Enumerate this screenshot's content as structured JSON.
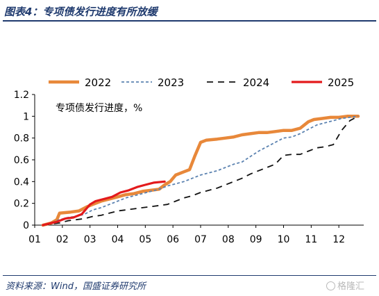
{
  "header": {
    "title": "图表4：专项债发行进度有所放缓"
  },
  "source": "资料来源：Wind，国盛证券研究所",
  "watermark": "格隆汇",
  "chart_data": {
    "type": "line",
    "annotation": "专项债发行进度，%",
    "x_ticks": [
      "01",
      "02",
      "03",
      "04",
      "05",
      "06",
      "07",
      "08",
      "09",
      "10",
      "11",
      "12"
    ],
    "y_ticks": [
      "0",
      "0.2",
      "0.4",
      "0.6",
      "0.8",
      "1",
      "1.2"
    ],
    "xlim": [
      1,
      12.9
    ],
    "ylim": [
      0,
      1.2
    ],
    "grid": false,
    "legend_position": "top",
    "series": [
      {
        "name": "2022",
        "color": "#e8883a",
        "style": "solid",
        "width": 4.5,
        "x": [
          1.3,
          1.6,
          1.8,
          1.9,
          2.3,
          2.6,
          2.9,
          3.1,
          3.4,
          3.7,
          4.0,
          4.3,
          4.6,
          4.9,
          5.2,
          5.5,
          5.7,
          5.9,
          6.1,
          6.4,
          6.6,
          6.8,
          7.0,
          7.2,
          7.6,
          7.9,
          8.2,
          8.5,
          8.8,
          9.1,
          9.4,
          9.7,
          10.0,
          10.3,
          10.6,
          10.9,
          11.1,
          11.4,
          11.7,
          12.0,
          12.3,
          12.7
        ],
        "y": [
          0.0,
          0.02,
          0.05,
          0.11,
          0.12,
          0.13,
          0.17,
          0.19,
          0.22,
          0.24,
          0.26,
          0.28,
          0.29,
          0.31,
          0.32,
          0.33,
          0.37,
          0.4,
          0.46,
          0.49,
          0.51,
          0.64,
          0.76,
          0.78,
          0.79,
          0.8,
          0.81,
          0.83,
          0.84,
          0.85,
          0.85,
          0.86,
          0.87,
          0.87,
          0.89,
          0.95,
          0.97,
          0.98,
          0.99,
          0.99,
          1.0,
          1.0
        ]
      },
      {
        "name": "2023",
        "color": "#5b82b0",
        "style": "dashed",
        "width": 1.8,
        "x": [
          1.3,
          1.6,
          1.9,
          2.2,
          2.5,
          2.8,
          3.1,
          3.4,
          3.7,
          4.0,
          4.3,
          4.6,
          4.9,
          5.2,
          5.5,
          5.8,
          6.1,
          6.4,
          6.7,
          7.0,
          7.3,
          7.6,
          7.9,
          8.2,
          8.5,
          8.8,
          9.1,
          9.4,
          9.7,
          10.0,
          10.3,
          10.6,
          10.9,
          11.2,
          11.5,
          11.8,
          12.1,
          12.4,
          12.7
        ],
        "y": [
          0.0,
          0.02,
          0.05,
          0.07,
          0.08,
          0.1,
          0.14,
          0.16,
          0.19,
          0.22,
          0.25,
          0.27,
          0.29,
          0.31,
          0.33,
          0.36,
          0.38,
          0.4,
          0.43,
          0.46,
          0.48,
          0.5,
          0.53,
          0.56,
          0.58,
          0.63,
          0.68,
          0.72,
          0.76,
          0.8,
          0.81,
          0.84,
          0.88,
          0.92,
          0.94,
          0.96,
          0.98,
          0.99,
          1.0
        ]
      },
      {
        "name": "2024",
        "color": "#111111",
        "style": "dashed",
        "width": 1.8,
        "x": [
          1.3,
          1.6,
          1.9,
          2.2,
          2.5,
          2.8,
          3.1,
          3.4,
          3.7,
          4.0,
          4.3,
          4.6,
          4.9,
          5.2,
          5.5,
          5.8,
          6.1,
          6.4,
          6.7,
          7.0,
          7.3,
          7.6,
          7.9,
          8.2,
          8.5,
          8.8,
          9.1,
          9.4,
          9.7,
          10.0,
          10.3,
          10.6,
          10.9,
          11.2,
          11.5,
          11.8,
          12.1,
          12.4,
          12.7
        ],
        "y": [
          0.0,
          0.01,
          0.02,
          0.04,
          0.05,
          0.06,
          0.08,
          0.09,
          0.11,
          0.13,
          0.14,
          0.15,
          0.16,
          0.17,
          0.18,
          0.19,
          0.22,
          0.25,
          0.27,
          0.3,
          0.32,
          0.34,
          0.37,
          0.4,
          0.43,
          0.47,
          0.5,
          0.53,
          0.56,
          0.64,
          0.65,
          0.65,
          0.68,
          0.71,
          0.72,
          0.74,
          0.87,
          0.96,
          1.0
        ]
      },
      {
        "name": "2025",
        "color": "#e31a1c",
        "style": "solid",
        "width": 3.2,
        "x": [
          1.3,
          1.6,
          1.8,
          2.1,
          2.4,
          2.7,
          3.0,
          3.2,
          3.5,
          3.8,
          4.1,
          4.4,
          4.7,
          5.0,
          5.3,
          5.7
        ],
        "y": [
          0.0,
          0.02,
          0.03,
          0.06,
          0.07,
          0.1,
          0.19,
          0.22,
          0.24,
          0.26,
          0.3,
          0.32,
          0.35,
          0.37,
          0.39,
          0.4
        ]
      }
    ]
  }
}
